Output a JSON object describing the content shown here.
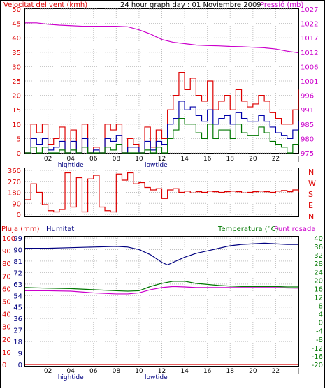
{
  "header": {
    "left_title": "Velocitat del vent (kmh)",
    "center_title": "24 hour graph day : 01 Noviembre 2009",
    "right_title": "Pressió (mb)"
  },
  "x_axis": {
    "tick_labels": [
      "02",
      "04",
      "06",
      "08",
      "10",
      "12",
      "14",
      "16",
      "18",
      "20",
      "22",
      "|"
    ],
    "tide_labels": [
      "hightide",
      "lowtide"
    ]
  },
  "panel2_right_labels": [
    "N",
    "W",
    "S",
    "E",
    "N"
  ],
  "panel3_titles": {
    "rain": "Pluja (mm)",
    "humidity": "Humitat",
    "temperature": "Temperatura (°C)",
    "dewpoint": "Punt rosada"
  },
  "colors": {
    "wind_gust": "#dd0000",
    "wind_avg": "#0000aa",
    "wind_min": "#007700",
    "pressure": "#cc00cc",
    "direction": "#dd0000",
    "humidity": "#000080",
    "temperature": "#007700",
    "dewpoint": "#cc00cc",
    "rain": "#dd0000",
    "axis_left": "#dd0000",
    "axis_right": "#cc00cc"
  },
  "chart_data": [
    {
      "type": "line",
      "name_hint": "wind-and-pressure",
      "x_range": [
        0,
        24
      ],
      "y_left": {
        "ticks": [
          0,
          5,
          10,
          15,
          20,
          25,
          30,
          35,
          40,
          45,
          50
        ],
        "ylim": [
          0,
          50
        ]
      },
      "y_right": {
        "ticks": [
          975,
          980,
          985,
          991,
          996,
          1001,
          1006,
          1012,
          1017,
          1022,
          1027
        ],
        "ylim": [
          975,
          1027
        ]
      },
      "series": [
        {
          "key": "gust",
          "x": [
            0,
            0.5,
            1,
            1.5,
            2,
            2.5,
            3,
            3.5,
            4,
            4.5,
            5,
            5.5,
            6,
            6.5,
            7,
            7.5,
            8,
            8.5,
            9,
            9.5,
            10,
            10.5,
            11,
            11.5,
            12,
            12.5,
            13,
            13.5,
            14,
            14.5,
            15,
            15.5,
            16,
            16.5,
            17,
            17.5,
            18,
            18.5,
            19,
            19.5,
            20,
            20.5,
            21,
            21.5,
            22,
            22.5,
            23,
            23.5,
            24
          ],
          "y": [
            0,
            10,
            7,
            10,
            3,
            5,
            9,
            0,
            8,
            0,
            10,
            0,
            2,
            0,
            10,
            8,
            10,
            0,
            5,
            3,
            0,
            9,
            2,
            8,
            5,
            15,
            20,
            28,
            22,
            26,
            20,
            18,
            25,
            15,
            18,
            20,
            15,
            22,
            18,
            16,
            17,
            20,
            18,
            14,
            12,
            10,
            10,
            15,
            22
          ]
        },
        {
          "key": "avg",
          "x": [
            0,
            0.5,
            1,
            1.5,
            2,
            2.5,
            3,
            3.5,
            4,
            4.5,
            5,
            5.5,
            6,
            6.5,
            7,
            7.5,
            8,
            8.5,
            9,
            9.5,
            10,
            10.5,
            11,
            11.5,
            12,
            12.5,
            13,
            13.5,
            14,
            14.5,
            15,
            15.5,
            16,
            16.5,
            17,
            17.5,
            18,
            18.5,
            19,
            19.5,
            20,
            20.5,
            21,
            21.5,
            22,
            22.5,
            23,
            23.5,
            24
          ],
          "y": [
            0,
            5,
            3,
            5,
            1,
            2,
            4,
            0,
            4,
            0,
            5,
            0,
            1,
            0,
            5,
            4,
            6,
            0,
            2,
            2,
            0,
            4,
            1,
            4,
            3,
            10,
            12,
            18,
            15,
            16,
            13,
            11,
            15,
            10,
            12,
            13,
            10,
            14,
            12,
            11,
            11,
            13,
            11,
            9,
            7,
            6,
            5,
            8,
            11
          ]
        },
        {
          "key": "min",
          "x": [
            0,
            0.5,
            1,
            1.5,
            2,
            2.5,
            3,
            3.5,
            4,
            4.5,
            5,
            5.5,
            6,
            6.5,
            7,
            7.5,
            8,
            8.5,
            9,
            9.5,
            10,
            10.5,
            11,
            11.5,
            12,
            12.5,
            13,
            13.5,
            14,
            14.5,
            15,
            15.5,
            16,
            16.5,
            17,
            17.5,
            18,
            18.5,
            19,
            19.5,
            20,
            20.5,
            21,
            21.5,
            22,
            22.5,
            23,
            23.5,
            24
          ],
          "y": [
            0,
            2,
            0,
            2,
            0,
            0,
            1,
            0,
            1,
            0,
            2,
            0,
            0,
            0,
            2,
            1,
            3,
            0,
            0,
            0,
            0,
            1,
            0,
            2,
            0,
            5,
            8,
            12,
            10,
            10,
            7,
            5,
            10,
            5,
            8,
            8,
            5,
            10,
            7,
            6,
            6,
            9,
            7,
            4,
            3,
            2,
            0,
            3,
            8
          ]
        },
        {
          "key": "pressure",
          "x": [
            0,
            1,
            2,
            3,
            4,
            5,
            6,
            7,
            8,
            9,
            10,
            11,
            12,
            13,
            14,
            15,
            16,
            17,
            18,
            19,
            20,
            21,
            22,
            23,
            24
          ],
          "y": [
            1022,
            1022,
            1021.5,
            1021.2,
            1021,
            1020.8,
            1020.8,
            1020.8,
            1020.8,
            1020.6,
            1019.5,
            1018,
            1016,
            1015,
            1014.5,
            1014,
            1013.8,
            1013.7,
            1013.5,
            1013.4,
            1013.2,
            1013,
            1012.6,
            1011.8,
            1011.2
          ]
        }
      ]
    },
    {
      "type": "line",
      "name_hint": "wind-direction",
      "x_range": [
        0,
        24
      ],
      "y_left": {
        "ticks": [
          0,
          90,
          180,
          270,
          360
        ],
        "ylim": [
          0,
          360
        ]
      },
      "series": [
        {
          "key": "direction",
          "x": [
            0,
            0.5,
            1,
            1.5,
            2,
            2.5,
            3,
            3.5,
            4,
            4.5,
            5,
            5.5,
            6,
            6.5,
            7,
            7.5,
            8,
            8.5,
            9,
            9.5,
            10,
            10.5,
            11,
            11.5,
            12,
            12.5,
            13,
            13.5,
            14,
            14.5,
            15,
            15.5,
            16,
            16.5,
            17,
            17.5,
            18,
            18.5,
            19,
            19.5,
            20,
            20.5,
            21,
            21.5,
            22,
            22.5,
            23,
            23.5,
            24
          ],
          "y": [
            120,
            250,
            180,
            80,
            30,
            20,
            40,
            340,
            60,
            300,
            20,
            290,
            320,
            60,
            30,
            20,
            330,
            280,
            340,
            250,
            260,
            220,
            200,
            210,
            130,
            200,
            210,
            180,
            190,
            175,
            185,
            180,
            190,
            185,
            180,
            185,
            190,
            185,
            175,
            180,
            185,
            190,
            185,
            180,
            190,
            195,
            185,
            200,
            180
          ]
        }
      ]
    },
    {
      "type": "line",
      "name_hint": "rain-humidity-temperature",
      "x_range": [
        0,
        24
      ],
      "y_left": {
        "rain_ticks": [
          0,
          10,
          20,
          30,
          40,
          50,
          60,
          70,
          80,
          90,
          100
        ],
        "humidity_ticks": [
          0,
          9,
          18,
          27,
          36,
          45,
          54,
          63,
          72,
          81,
          90,
          99
        ],
        "ylim_rain": [
          0,
          100
        ],
        "ylim_humidity": [
          0,
          99
        ]
      },
      "y_right": {
        "ticks": [
          -20,
          -16,
          -12,
          -8,
          -4,
          0,
          4,
          8,
          12,
          16,
          20,
          24,
          28,
          32,
          36,
          40
        ],
        "ylim": [
          -20,
          40
        ]
      },
      "series": [
        {
          "key": "humidity",
          "x": [
            0,
            2,
            4,
            6,
            8,
            9,
            10,
            11,
            12,
            12.5,
            13,
            14,
            15,
            16,
            17,
            18,
            19,
            20,
            21,
            22,
            23,
            24
          ],
          "y": [
            91,
            91,
            91.5,
            92,
            92.5,
            92,
            90,
            86,
            80,
            78,
            80,
            84,
            87,
            89,
            91,
            93,
            94,
            94.5,
            95,
            94.5,
            94,
            94
          ]
        },
        {
          "key": "temperature",
          "x": [
            0,
            2,
            4,
            6,
            8,
            9,
            10,
            11,
            12,
            13,
            14,
            15,
            16,
            17,
            18,
            19,
            20,
            21,
            22,
            23,
            24
          ],
          "y": [
            16.5,
            16.2,
            16,
            15.5,
            15,
            14.8,
            15,
            17,
            18.5,
            19.5,
            19.5,
            18.5,
            18,
            17.5,
            17.2,
            17,
            17,
            17,
            17,
            16.8,
            16.8
          ]
        },
        {
          "key": "dewpoint",
          "x": [
            0,
            2,
            4,
            6,
            8,
            9,
            10,
            11,
            12,
            13,
            14,
            15,
            16,
            17,
            18,
            19,
            20,
            21,
            22,
            23,
            24
          ],
          "y": [
            15,
            15,
            14.8,
            14,
            13.5,
            13.5,
            14,
            15.5,
            16.5,
            17,
            16.8,
            16.5,
            16.5,
            16.5,
            16.5,
            16.5,
            16.5,
            16.5,
            16.5,
            16.3,
            16.2
          ]
        },
        {
          "key": "rain",
          "x": [
            0,
            24
          ],
          "y": [
            0,
            0
          ]
        }
      ]
    }
  ]
}
